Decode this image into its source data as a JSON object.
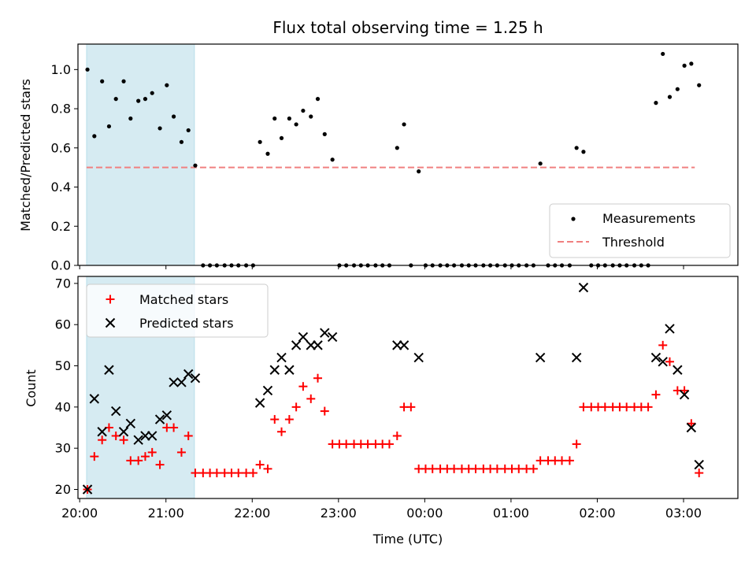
{
  "chart_data": [
    {
      "type": "scatter",
      "title": "Flux total observing time = 1.25 h",
      "xlabel": "",
      "ylabel": "Matched/Predicted stars",
      "x_unit": "hours since 20:00 UTC",
      "xlim": [
        19.98,
        27.63
      ],
      "ylim": [
        0,
        1.13
      ],
      "yticks": [
        0.0,
        0.2,
        0.4,
        0.6,
        0.8,
        1.0
      ],
      "ytick_labels": [
        "0.0",
        "0.2",
        "0.4",
        "0.6",
        "0.8",
        "1.0"
      ],
      "shaded_span": [
        20.08,
        21.33
      ],
      "legend": {
        "position": "lower-right",
        "entries": [
          "Measurements",
          "Threshold"
        ]
      },
      "threshold": {
        "name": "Threshold",
        "value": 0.5,
        "x_range": [
          20.08,
          27.13
        ],
        "color": "#f08080"
      },
      "series": [
        {
          "name": "Measurements",
          "color": "#000000",
          "points": [
            [
              20.09,
              1.0
            ],
            [
              20.17,
              0.66
            ],
            [
              20.26,
              0.94
            ],
            [
              20.34,
              0.71
            ],
            [
              20.42,
              0.85
            ],
            [
              20.51,
              0.94
            ],
            [
              20.59,
              0.75
            ],
            [
              20.68,
              0.84
            ],
            [
              20.76,
              0.85
            ],
            [
              20.84,
              0.88
            ],
            [
              20.93,
              0.7
            ],
            [
              21.01,
              0.92
            ],
            [
              21.09,
              0.76
            ],
            [
              21.18,
              0.63
            ],
            [
              21.26,
              0.69
            ],
            [
              21.34,
              0.51
            ],
            [
              21.43,
              0.0
            ],
            [
              21.51,
              0.0
            ],
            [
              21.59,
              0.0
            ],
            [
              21.68,
              0.0
            ],
            [
              21.76,
              0.0
            ],
            [
              21.84,
              0.0
            ],
            [
              21.93,
              0.0
            ],
            [
              22.01,
              0.0
            ],
            [
              22.09,
              0.63
            ],
            [
              22.18,
              0.57
            ],
            [
              22.26,
              0.75
            ],
            [
              22.34,
              0.65
            ],
            [
              22.43,
              0.75
            ],
            [
              22.51,
              0.72
            ],
            [
              22.59,
              0.79
            ],
            [
              22.68,
              0.76
            ],
            [
              22.76,
              0.85
            ],
            [
              22.84,
              0.67
            ],
            [
              22.93,
              0.54
            ],
            [
              23.01,
              0.0
            ],
            [
              23.09,
              0.0
            ],
            [
              23.18,
              0.0
            ],
            [
              23.26,
              0.0
            ],
            [
              23.34,
              0.0
            ],
            [
              23.43,
              0.0
            ],
            [
              23.51,
              0.0
            ],
            [
              23.59,
              0.0
            ],
            [
              23.68,
              0.6
            ],
            [
              23.76,
              0.72
            ],
            [
              23.84,
              0.0
            ],
            [
              23.93,
              0.48
            ],
            [
              24.01,
              0.0
            ],
            [
              24.09,
              0.0
            ],
            [
              24.18,
              0.0
            ],
            [
              24.26,
              0.0
            ],
            [
              24.34,
              0.0
            ],
            [
              24.43,
              0.0
            ],
            [
              24.51,
              0.0
            ],
            [
              24.59,
              0.0
            ],
            [
              24.68,
              0.0
            ],
            [
              24.76,
              0.0
            ],
            [
              24.84,
              0.0
            ],
            [
              24.93,
              0.0
            ],
            [
              25.01,
              0.0
            ],
            [
              25.09,
              0.0
            ],
            [
              25.18,
              0.0
            ],
            [
              25.26,
              0.0
            ],
            [
              25.34,
              0.52
            ],
            [
              25.43,
              0.0
            ],
            [
              25.51,
              0.0
            ],
            [
              25.59,
              0.0
            ],
            [
              25.68,
              0.0
            ],
            [
              25.76,
              0.6
            ],
            [
              25.84,
              0.58
            ],
            [
              25.93,
              0.0
            ],
            [
              26.01,
              0.0
            ],
            [
              26.09,
              0.0
            ],
            [
              26.18,
              0.0
            ],
            [
              26.26,
              0.0
            ],
            [
              26.34,
              0.0
            ],
            [
              26.43,
              0.0
            ],
            [
              26.51,
              0.0
            ],
            [
              26.59,
              0.0
            ],
            [
              26.68,
              0.83
            ],
            [
              26.76,
              1.08
            ],
            [
              26.84,
              0.86
            ],
            [
              26.93,
              0.9
            ],
            [
              27.01,
              1.02
            ],
            [
              27.09,
              1.03
            ],
            [
              27.18,
              0.92
            ]
          ]
        }
      ]
    },
    {
      "type": "scatter",
      "title": "",
      "xlabel": "Time (UTC)",
      "ylabel": "Count",
      "x_unit": "hours since 20:00 UTC",
      "xlim": [
        19.98,
        27.63
      ],
      "ylim": [
        17.8,
        71.7
      ],
      "xticks": [
        20,
        21,
        22,
        23,
        24,
        25,
        26,
        27
      ],
      "xtick_labels": [
        "20:00",
        "21:00",
        "22:00",
        "23:00",
        "00:00",
        "01:00",
        "02:00",
        "03:00"
      ],
      "yticks": [
        20,
        30,
        40,
        50,
        60,
        70
      ],
      "ytick_labels": [
        "20",
        "30",
        "40",
        "50",
        "60",
        "70"
      ],
      "shaded_span": [
        20.08,
        21.33
      ],
      "legend": {
        "position": "upper-left",
        "entries": [
          "Matched stars",
          "Predicted stars"
        ]
      },
      "series": [
        {
          "name": "Matched stars",
          "marker": "plus",
          "color": "#ff0000",
          "points": [
            [
              20.09,
              20
            ],
            [
              20.17,
              28
            ],
            [
              20.26,
              32
            ],
            [
              20.34,
              35
            ],
            [
              20.42,
              33
            ],
            [
              20.51,
              32
            ],
            [
              20.59,
              27
            ],
            [
              20.68,
              27
            ],
            [
              20.76,
              28
            ],
            [
              20.84,
              29
            ],
            [
              20.93,
              26
            ],
            [
              21.01,
              35
            ],
            [
              21.09,
              35
            ],
            [
              21.18,
              29
            ],
            [
              21.26,
              33
            ],
            [
              21.34,
              24
            ],
            [
              21.43,
              24
            ],
            [
              21.51,
              24
            ],
            [
              21.59,
              24
            ],
            [
              21.68,
              24
            ],
            [
              21.76,
              24
            ],
            [
              21.84,
              24
            ],
            [
              21.93,
              24
            ],
            [
              22.01,
              24
            ],
            [
              22.09,
              26
            ],
            [
              22.18,
              25
            ],
            [
              22.26,
              37
            ],
            [
              22.34,
              34
            ],
            [
              22.43,
              37
            ],
            [
              22.51,
              40
            ],
            [
              22.59,
              45
            ],
            [
              22.68,
              42
            ],
            [
              22.76,
              47
            ],
            [
              22.84,
              39
            ],
            [
              22.93,
              31
            ],
            [
              23.01,
              31
            ],
            [
              23.09,
              31
            ],
            [
              23.18,
              31
            ],
            [
              23.26,
              31
            ],
            [
              23.34,
              31
            ],
            [
              23.43,
              31
            ],
            [
              23.51,
              31
            ],
            [
              23.59,
              31
            ],
            [
              23.68,
              33
            ],
            [
              23.76,
              40
            ],
            [
              23.84,
              40
            ],
            [
              23.93,
              25
            ],
            [
              24.01,
              25
            ],
            [
              24.09,
              25
            ],
            [
              24.18,
              25
            ],
            [
              24.26,
              25
            ],
            [
              24.34,
              25
            ],
            [
              24.43,
              25
            ],
            [
              24.51,
              25
            ],
            [
              24.59,
              25
            ],
            [
              24.68,
              25
            ],
            [
              24.76,
              25
            ],
            [
              24.84,
              25
            ],
            [
              24.93,
              25
            ],
            [
              25.01,
              25
            ],
            [
              25.09,
              25
            ],
            [
              25.18,
              25
            ],
            [
              25.26,
              25
            ],
            [
              25.34,
              27
            ],
            [
              25.43,
              27
            ],
            [
              25.51,
              27
            ],
            [
              25.59,
              27
            ],
            [
              25.68,
              27
            ],
            [
              25.76,
              31
            ],
            [
              25.84,
              40
            ],
            [
              25.93,
              40
            ],
            [
              26.01,
              40
            ],
            [
              26.09,
              40
            ],
            [
              26.18,
              40
            ],
            [
              26.26,
              40
            ],
            [
              26.34,
              40
            ],
            [
              26.43,
              40
            ],
            [
              26.51,
              40
            ],
            [
              26.59,
              40
            ],
            [
              26.68,
              43
            ],
            [
              26.76,
              55
            ],
            [
              26.84,
              51
            ],
            [
              26.93,
              44
            ],
            [
              27.01,
              44
            ],
            [
              27.09,
              36
            ],
            [
              27.18,
              24
            ]
          ]
        },
        {
          "name": "Predicted stars",
          "marker": "x",
          "color": "#000000",
          "points": [
            [
              20.09,
              20
            ],
            [
              20.17,
              42
            ],
            [
              20.26,
              34
            ],
            [
              20.34,
              49
            ],
            [
              20.42,
              39
            ],
            [
              20.51,
              34
            ],
            [
              20.59,
              36
            ],
            [
              20.68,
              32
            ],
            [
              20.76,
              33
            ],
            [
              20.84,
              33
            ],
            [
              20.93,
              37
            ],
            [
              21.01,
              38
            ],
            [
              21.09,
              46
            ],
            [
              21.18,
              46
            ],
            [
              21.26,
              48
            ],
            [
              21.34,
              47
            ],
            [
              22.09,
              41
            ],
            [
              22.18,
              44
            ],
            [
              22.26,
              49
            ],
            [
              22.34,
              52
            ],
            [
              22.43,
              49
            ],
            [
              22.51,
              55
            ],
            [
              22.59,
              57
            ],
            [
              22.68,
              55
            ],
            [
              22.76,
              55
            ],
            [
              22.84,
              58
            ],
            [
              22.93,
              57
            ],
            [
              23.68,
              55
            ],
            [
              23.76,
              55
            ],
            [
              23.93,
              52
            ],
            [
              25.34,
              52
            ],
            [
              25.76,
              52
            ],
            [
              25.84,
              69
            ],
            [
              26.68,
              52
            ],
            [
              26.76,
              51
            ],
            [
              26.84,
              59
            ],
            [
              26.93,
              49
            ],
            [
              27.01,
              43
            ],
            [
              27.09,
              35
            ],
            [
              27.18,
              26
            ]
          ]
        }
      ]
    }
  ]
}
